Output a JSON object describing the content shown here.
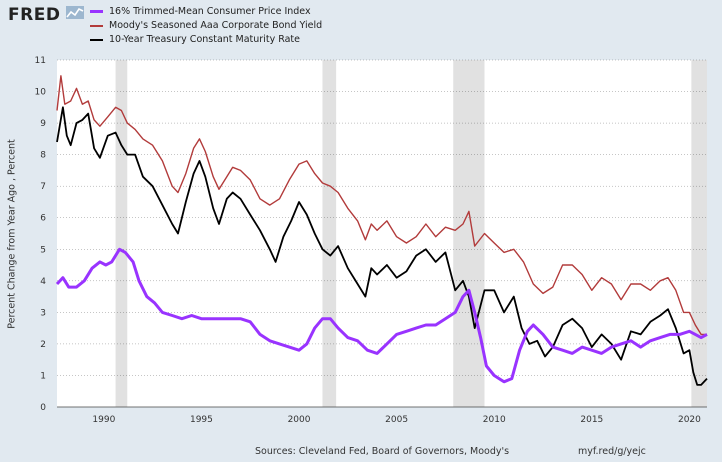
{
  "header": {
    "logo_text": "FRED",
    "logo_icon": "line-chart-icon"
  },
  "footer": {
    "sources": "Sources: Cleveland Fed, Board of Governors, Moody's",
    "url": "myf.red/g/yejc"
  },
  "colors": {
    "background": "#e1e9f0",
    "plot_background": "#ffffff",
    "recession_shade": "#e1e1e1",
    "grid": "#000000",
    "cpi": "#9933ff",
    "aaa": "#b23b3b",
    "treasury": "#000000"
  },
  "chart_data": {
    "type": "line",
    "title": "",
    "xlabel": "",
    "ylabel": "Percent Change from Year Ago , Percent",
    "xlim": [
      1987.6,
      2020.9
    ],
    "ylim": [
      0,
      11
    ],
    "x_ticks": [
      1990,
      1995,
      2000,
      2005,
      2010,
      2015,
      2020
    ],
    "y_ticks": [
      0,
      1,
      2,
      3,
      4,
      5,
      6,
      7,
      8,
      9,
      10,
      11
    ],
    "grid": true,
    "legend_position": "top-left",
    "recessions": [
      [
        1990.6,
        1991.2
      ],
      [
        2001.2,
        2001.9
      ],
      [
        2007.9,
        2009.5
      ],
      [
        2020.1,
        2020.9
      ]
    ],
    "series": [
      {
        "name": "16% Trimmed-Mean Consumer Price Index",
        "color": "#9933ff",
        "width": 3,
        "points": [
          [
            1987.6,
            3.9
          ],
          [
            1987.9,
            4.1
          ],
          [
            1988.2,
            3.8
          ],
          [
            1988.6,
            3.8
          ],
          [
            1989.0,
            4.0
          ],
          [
            1989.4,
            4.4
          ],
          [
            1989.8,
            4.6
          ],
          [
            1990.1,
            4.5
          ],
          [
            1990.4,
            4.6
          ],
          [
            1990.8,
            5.0
          ],
          [
            1991.1,
            4.9
          ],
          [
            1991.5,
            4.6
          ],
          [
            1991.8,
            4.0
          ],
          [
            1992.2,
            3.5
          ],
          [
            1992.6,
            3.3
          ],
          [
            1993.0,
            3.0
          ],
          [
            1993.5,
            2.9
          ],
          [
            1994.0,
            2.8
          ],
          [
            1994.5,
            2.9
          ],
          [
            1995.0,
            2.8
          ],
          [
            1995.5,
            2.8
          ],
          [
            1996.0,
            2.8
          ],
          [
            1996.5,
            2.8
          ],
          [
            1997.0,
            2.8
          ],
          [
            1997.5,
            2.7
          ],
          [
            1998.0,
            2.3
          ],
          [
            1998.5,
            2.1
          ],
          [
            1999.0,
            2.0
          ],
          [
            1999.5,
            1.9
          ],
          [
            2000.0,
            1.8
          ],
          [
            2000.4,
            2.0
          ],
          [
            2000.8,
            2.5
          ],
          [
            2001.2,
            2.8
          ],
          [
            2001.6,
            2.8
          ],
          [
            2002.0,
            2.5
          ],
          [
            2002.5,
            2.2
          ],
          [
            2003.0,
            2.1
          ],
          [
            2003.5,
            1.8
          ],
          [
            2004.0,
            1.7
          ],
          [
            2004.5,
            2.0
          ],
          [
            2005.0,
            2.3
          ],
          [
            2005.5,
            2.4
          ],
          [
            2006.0,
            2.5
          ],
          [
            2006.5,
            2.6
          ],
          [
            2007.0,
            2.6
          ],
          [
            2007.5,
            2.8
          ],
          [
            2008.0,
            3.0
          ],
          [
            2008.4,
            3.5
          ],
          [
            2008.7,
            3.7
          ],
          [
            2009.0,
            3.0
          ],
          [
            2009.3,
            2.2
          ],
          [
            2009.6,
            1.3
          ],
          [
            2010.0,
            1.0
          ],
          [
            2010.5,
            0.8
          ],
          [
            2010.9,
            0.9
          ],
          [
            2011.3,
            1.8
          ],
          [
            2011.7,
            2.4
          ],
          [
            2012.0,
            2.6
          ],
          [
            2012.5,
            2.3
          ],
          [
            2013.0,
            1.9
          ],
          [
            2013.5,
            1.8
          ],
          [
            2014.0,
            1.7
          ],
          [
            2014.5,
            1.9
          ],
          [
            2015.0,
            1.8
          ],
          [
            2015.5,
            1.7
          ],
          [
            2016.0,
            1.9
          ],
          [
            2016.5,
            2.0
          ],
          [
            2017.0,
            2.1
          ],
          [
            2017.5,
            1.9
          ],
          [
            2018.0,
            2.1
          ],
          [
            2018.5,
            2.2
          ],
          [
            2019.0,
            2.3
          ],
          [
            2019.5,
            2.3
          ],
          [
            2020.0,
            2.4
          ],
          [
            2020.3,
            2.3
          ],
          [
            2020.6,
            2.2
          ],
          [
            2020.9,
            2.3
          ]
        ]
      },
      {
        "name": "Moody's Seasoned Aaa Corporate Bond Yield",
        "color": "#b23b3b",
        "width": 1.4,
        "points": [
          [
            1987.6,
            9.4
          ],
          [
            1987.8,
            10.5
          ],
          [
            1988.0,
            9.6
          ],
          [
            1988.3,
            9.7
          ],
          [
            1988.6,
            10.1
          ],
          [
            1988.9,
            9.6
          ],
          [
            1989.2,
            9.7
          ],
          [
            1989.5,
            9.1
          ],
          [
            1989.8,
            8.9
          ],
          [
            1990.2,
            9.2
          ],
          [
            1990.6,
            9.5
          ],
          [
            1990.9,
            9.4
          ],
          [
            1991.2,
            9.0
          ],
          [
            1991.6,
            8.8
          ],
          [
            1992.0,
            8.5
          ],
          [
            1992.5,
            8.3
          ],
          [
            1993.0,
            7.8
          ],
          [
            1993.5,
            7.0
          ],
          [
            1993.8,
            6.8
          ],
          [
            1994.2,
            7.4
          ],
          [
            1994.6,
            8.2
          ],
          [
            1994.9,
            8.5
          ],
          [
            1995.2,
            8.1
          ],
          [
            1995.6,
            7.3
          ],
          [
            1995.9,
            6.9
          ],
          [
            1996.3,
            7.3
          ],
          [
            1996.6,
            7.6
          ],
          [
            1997.0,
            7.5
          ],
          [
            1997.5,
            7.2
          ],
          [
            1998.0,
            6.6
          ],
          [
            1998.5,
            6.4
          ],
          [
            1999.0,
            6.6
          ],
          [
            1999.5,
            7.2
          ],
          [
            2000.0,
            7.7
          ],
          [
            2000.4,
            7.8
          ],
          [
            2000.8,
            7.4
          ],
          [
            2001.2,
            7.1
          ],
          [
            2001.6,
            7.0
          ],
          [
            2002.0,
            6.8
          ],
          [
            2002.5,
            6.3
          ],
          [
            2003.0,
            5.9
          ],
          [
            2003.4,
            5.3
          ],
          [
            2003.7,
            5.8
          ],
          [
            2004.0,
            5.6
          ],
          [
            2004.5,
            5.9
          ],
          [
            2005.0,
            5.4
          ],
          [
            2005.5,
            5.2
          ],
          [
            2006.0,
            5.4
          ],
          [
            2006.5,
            5.8
          ],
          [
            2007.0,
            5.4
          ],
          [
            2007.5,
            5.7
          ],
          [
            2008.0,
            5.6
          ],
          [
            2008.4,
            5.8
          ],
          [
            2008.7,
            6.2
          ],
          [
            2009.0,
            5.1
          ],
          [
            2009.5,
            5.5
          ],
          [
            2010.0,
            5.2
          ],
          [
            2010.5,
            4.9
          ],
          [
            2011.0,
            5.0
          ],
          [
            2011.5,
            4.6
          ],
          [
            2012.0,
            3.9
          ],
          [
            2012.5,
            3.6
          ],
          [
            2013.0,
            3.8
          ],
          [
            2013.5,
            4.5
          ],
          [
            2014.0,
            4.5
          ],
          [
            2014.5,
            4.2
          ],
          [
            2015.0,
            3.7
          ],
          [
            2015.5,
            4.1
          ],
          [
            2016.0,
            3.9
          ],
          [
            2016.5,
            3.4
          ],
          [
            2017.0,
            3.9
          ],
          [
            2017.5,
            3.9
          ],
          [
            2018.0,
            3.7
          ],
          [
            2018.5,
            4.0
          ],
          [
            2018.9,
            4.1
          ],
          [
            2019.3,
            3.7
          ],
          [
            2019.7,
            3.0
          ],
          [
            2020.0,
            3.0
          ],
          [
            2020.3,
            2.6
          ],
          [
            2020.6,
            2.3
          ],
          [
            2020.9,
            2.3
          ]
        ]
      },
      {
        "name": "10-Year Treasury Constant Maturity Rate",
        "color": "#000000",
        "width": 1.8,
        "points": [
          [
            1987.6,
            8.4
          ],
          [
            1987.9,
            9.5
          ],
          [
            1988.1,
            8.6
          ],
          [
            1988.3,
            8.3
          ],
          [
            1988.6,
            9.0
          ],
          [
            1988.9,
            9.1
          ],
          [
            1989.2,
            9.3
          ],
          [
            1989.5,
            8.2
          ],
          [
            1989.8,
            7.9
          ],
          [
            1990.2,
            8.6
          ],
          [
            1990.6,
            8.7
          ],
          [
            1990.9,
            8.3
          ],
          [
            1991.2,
            8.0
          ],
          [
            1991.6,
            8.0
          ],
          [
            1992.0,
            7.3
          ],
          [
            1992.5,
            7.0
          ],
          [
            1993.0,
            6.4
          ],
          [
            1993.5,
            5.8
          ],
          [
            1993.8,
            5.5
          ],
          [
            1994.2,
            6.5
          ],
          [
            1994.6,
            7.4
          ],
          [
            1994.9,
            7.8
          ],
          [
            1995.2,
            7.3
          ],
          [
            1995.6,
            6.3
          ],
          [
            1995.9,
            5.8
          ],
          [
            1996.3,
            6.6
          ],
          [
            1996.6,
            6.8
          ],
          [
            1997.0,
            6.6
          ],
          [
            1997.5,
            6.1
          ],
          [
            1998.0,
            5.6
          ],
          [
            1998.5,
            5.0
          ],
          [
            1998.8,
            4.6
          ],
          [
            1999.2,
            5.4
          ],
          [
            1999.6,
            5.9
          ],
          [
            2000.0,
            6.5
          ],
          [
            2000.4,
            6.1
          ],
          [
            2000.8,
            5.5
          ],
          [
            2001.2,
            5.0
          ],
          [
            2001.6,
            4.8
          ],
          [
            2002.0,
            5.1
          ],
          [
            2002.5,
            4.4
          ],
          [
            2003.0,
            3.9
          ],
          [
            2003.4,
            3.5
          ],
          [
            2003.7,
            4.4
          ],
          [
            2004.0,
            4.2
          ],
          [
            2004.5,
            4.5
          ],
          [
            2005.0,
            4.1
          ],
          [
            2005.5,
            4.3
          ],
          [
            2006.0,
            4.8
          ],
          [
            2006.5,
            5.0
          ],
          [
            2007.0,
            4.6
          ],
          [
            2007.5,
            4.9
          ],
          [
            2008.0,
            3.7
          ],
          [
            2008.4,
            4.0
          ],
          [
            2008.7,
            3.5
          ],
          [
            2009.0,
            2.5
          ],
          [
            2009.5,
            3.7
          ],
          [
            2010.0,
            3.7
          ],
          [
            2010.5,
            3.0
          ],
          [
            2011.0,
            3.5
          ],
          [
            2011.4,
            2.5
          ],
          [
            2011.8,
            2.0
          ],
          [
            2012.2,
            2.1
          ],
          [
            2012.6,
            1.6
          ],
          [
            2013.0,
            1.9
          ],
          [
            2013.5,
            2.6
          ],
          [
            2014.0,
            2.8
          ],
          [
            2014.5,
            2.5
          ],
          [
            2015.0,
            1.9
          ],
          [
            2015.5,
            2.3
          ],
          [
            2016.0,
            2.0
          ],
          [
            2016.5,
            1.5
          ],
          [
            2017.0,
            2.4
          ],
          [
            2017.5,
            2.3
          ],
          [
            2018.0,
            2.7
          ],
          [
            2018.5,
            2.9
          ],
          [
            2018.9,
            3.1
          ],
          [
            2019.3,
            2.5
          ],
          [
            2019.7,
            1.7
          ],
          [
            2020.0,
            1.8
          ],
          [
            2020.2,
            1.1
          ],
          [
            2020.4,
            0.7
          ],
          [
            2020.6,
            0.7
          ],
          [
            2020.9,
            0.9
          ]
        ]
      }
    ]
  }
}
